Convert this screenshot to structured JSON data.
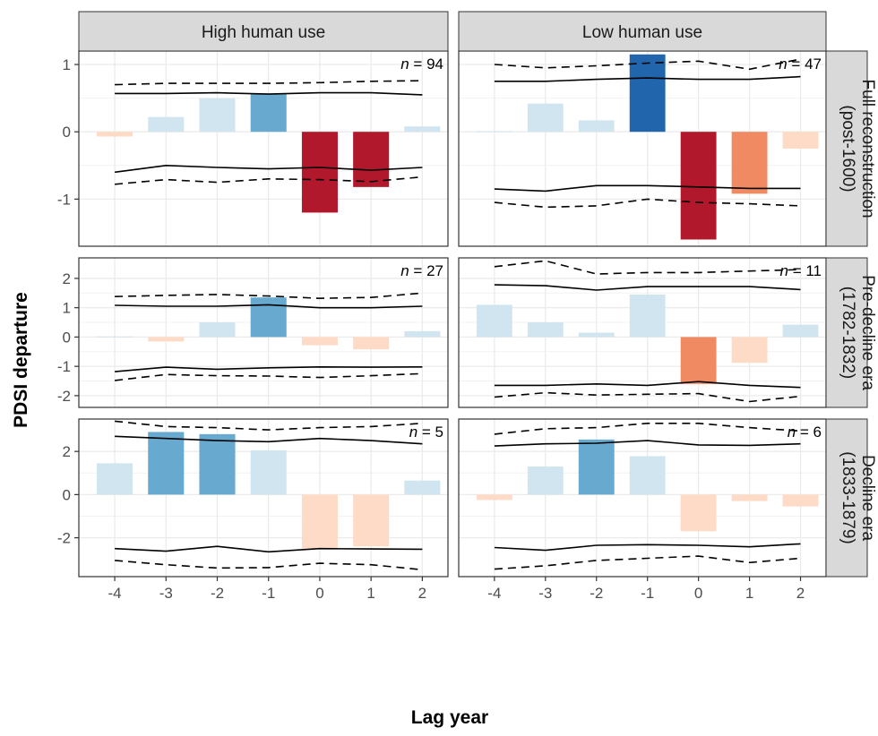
{
  "chart_data": {
    "type": "bar",
    "xlabel": "Lag year",
    "ylabel": "PDSI departure",
    "x": [
      -4,
      -3,
      -2,
      -1,
      0,
      1,
      2
    ],
    "col_strips": [
      "High human use",
      "Low human use"
    ],
    "row_strips": [
      [
        "Full reconstruction",
        "(post-1600)"
      ],
      [
        "Pre-decline era",
        "(1782-1832)"
      ],
      [
        "Decline era",
        "(1833-1879)"
      ]
    ],
    "row_scales": [
      {
        "ylim": [
          -1.7,
          1.2
        ],
        "yticks": [
          -1,
          0,
          1
        ],
        "yticklabels": [
          "-1",
          "0",
          "1"
        ]
      },
      {
        "ylim": [
          -2.4,
          2.7
        ],
        "yticks": [
          -2,
          -1,
          0,
          1,
          2
        ],
        "yticklabels": [
          "-2",
          "-1",
          "0",
          "1",
          "2"
        ]
      },
      {
        "ylim": [
          -3.8,
          3.5
        ],
        "yticks": [
          -2,
          0,
          2
        ],
        "yticklabels": [
          "-2",
          "0",
          "2"
        ]
      }
    ],
    "legend": "none",
    "grid": true,
    "panels": [
      {
        "row": 0,
        "col": 0,
        "n_prefix": "n",
        "n_text": " = 94",
        "values": [
          -0.07,
          0.22,
          0.5,
          0.57,
          -1.2,
          -0.82,
          0.08
        ],
        "shades": [
          "#fddbc7",
          "#d1e5f0",
          "#d1e5f0",
          "#67a9cf",
          "#b2182b",
          "#b2182b",
          "#d1e5f0"
        ],
        "upper_solid": [
          0.57,
          0.57,
          0.58,
          0.56,
          0.58,
          0.58,
          0.55
        ],
        "upper_dashed": [
          0.7,
          0.72,
          0.72,
          0.72,
          0.73,
          0.75,
          0.76
        ],
        "lower_solid": [
          -0.6,
          -0.5,
          -0.53,
          -0.55,
          -0.53,
          -0.57,
          -0.53
        ],
        "lower_dashed": [
          -0.78,
          -0.71,
          -0.75,
          -0.7,
          -0.71,
          -0.74,
          -0.67
        ]
      },
      {
        "row": 0,
        "col": 1,
        "n_prefix": "n",
        "n_text": " = 47",
        "values": [
          0.01,
          0.42,
          0.17,
          1.15,
          -1.6,
          -0.92,
          -0.25
        ],
        "shades": [
          "#d1e5f0",
          "#d1e5f0",
          "#d1e5f0",
          "#2166ac",
          "#b2182b",
          "#ef8a62",
          "#fddbc7"
        ],
        "upper_solid": [
          0.75,
          0.75,
          0.78,
          0.8,
          0.78,
          0.78,
          0.82
        ],
        "upper_dashed": [
          1.0,
          0.95,
          0.98,
          1.02,
          1.05,
          0.93,
          1.08
        ],
        "lower_solid": [
          -0.85,
          -0.88,
          -0.8,
          -0.8,
          -0.82,
          -0.84,
          -0.84
        ],
        "lower_dashed": [
          -1.05,
          -1.12,
          -1.1,
          -1.0,
          -1.05,
          -1.07,
          -1.1
        ]
      },
      {
        "row": 1,
        "col": 0,
        "n_prefix": "n",
        "n_text": " = 27",
        "values": [
          0.02,
          -0.15,
          0.5,
          1.35,
          -0.28,
          -0.42,
          0.2
        ],
        "shades": [
          "#d1e5f0",
          "#fddbc7",
          "#d1e5f0",
          "#67a9cf",
          "#fddbc7",
          "#fddbc7",
          "#d1e5f0"
        ],
        "upper_solid": [
          1.08,
          1.05,
          1.05,
          1.1,
          1.0,
          1.0,
          1.05
        ],
        "upper_dashed": [
          1.38,
          1.42,
          1.45,
          1.4,
          1.32,
          1.35,
          1.5
        ],
        "lower_solid": [
          -1.18,
          -1.03,
          -1.1,
          -1.05,
          -1.02,
          -1.03,
          -1.02
        ],
        "lower_dashed": [
          -1.48,
          -1.28,
          -1.32,
          -1.33,
          -1.38,
          -1.32,
          -1.25
        ]
      },
      {
        "row": 1,
        "col": 1,
        "n_prefix": "n",
        "n_text": " = 11",
        "values": [
          1.1,
          0.5,
          0.15,
          1.45,
          -1.6,
          -0.88,
          0.42
        ],
        "shades": [
          "#d1e5f0",
          "#d1e5f0",
          "#d1e5f0",
          "#d1e5f0",
          "#ef8a62",
          "#fddbc7",
          "#d1e5f0"
        ],
        "upper_solid": [
          1.78,
          1.75,
          1.6,
          1.72,
          1.72,
          1.72,
          1.62
        ],
        "upper_dashed": [
          2.4,
          2.6,
          2.15,
          2.2,
          2.2,
          2.25,
          2.3
        ],
        "lower_solid": [
          -1.65,
          -1.65,
          -1.6,
          -1.65,
          -1.52,
          -1.65,
          -1.72
        ],
        "lower_dashed": [
          -2.05,
          -1.9,
          -1.98,
          -1.95,
          -1.93,
          -2.2,
          -2.02
        ]
      },
      {
        "row": 2,
        "col": 0,
        "n_prefix": "n",
        "n_text": " = 5",
        "values": [
          1.45,
          2.9,
          2.8,
          2.05,
          -2.5,
          -2.4,
          0.65
        ],
        "shades": [
          "#d1e5f0",
          "#67a9cf",
          "#67a9cf",
          "#d1e5f0",
          "#fddbc7",
          "#fddbc7",
          "#d1e5f0"
        ],
        "upper_solid": [
          2.7,
          2.6,
          2.5,
          2.45,
          2.6,
          2.5,
          2.35
        ],
        "upper_dashed": [
          3.4,
          3.15,
          3.1,
          3.0,
          3.1,
          3.15,
          3.3
        ],
        "lower_solid": [
          -2.5,
          -2.62,
          -2.4,
          -2.65,
          -2.5,
          -2.52,
          -2.53
        ],
        "lower_dashed": [
          -3.05,
          -3.25,
          -3.4,
          -3.38,
          -3.18,
          -3.25,
          -3.48
        ]
      },
      {
        "row": 2,
        "col": 1,
        "n_prefix": "n",
        "n_text": " = 6",
        "values": [
          -0.25,
          1.3,
          2.55,
          1.78,
          -1.7,
          -0.3,
          -0.55
        ],
        "shades": [
          "#fddbc7",
          "#d1e5f0",
          "#67a9cf",
          "#d1e5f0",
          "#fddbc7",
          "#fddbc7",
          "#fddbc7"
        ],
        "upper_solid": [
          2.25,
          2.35,
          2.38,
          2.5,
          2.3,
          2.28,
          2.35
        ],
        "upper_dashed": [
          2.8,
          3.05,
          3.1,
          3.3,
          3.3,
          3.1,
          2.95
        ],
        "lower_solid": [
          -2.45,
          -2.58,
          -2.35,
          -2.32,
          -2.35,
          -2.42,
          -2.28
        ],
        "lower_dashed": [
          -3.45,
          -3.3,
          -3.05,
          -2.95,
          -2.85,
          -3.15,
          -2.95
        ]
      }
    ]
  }
}
